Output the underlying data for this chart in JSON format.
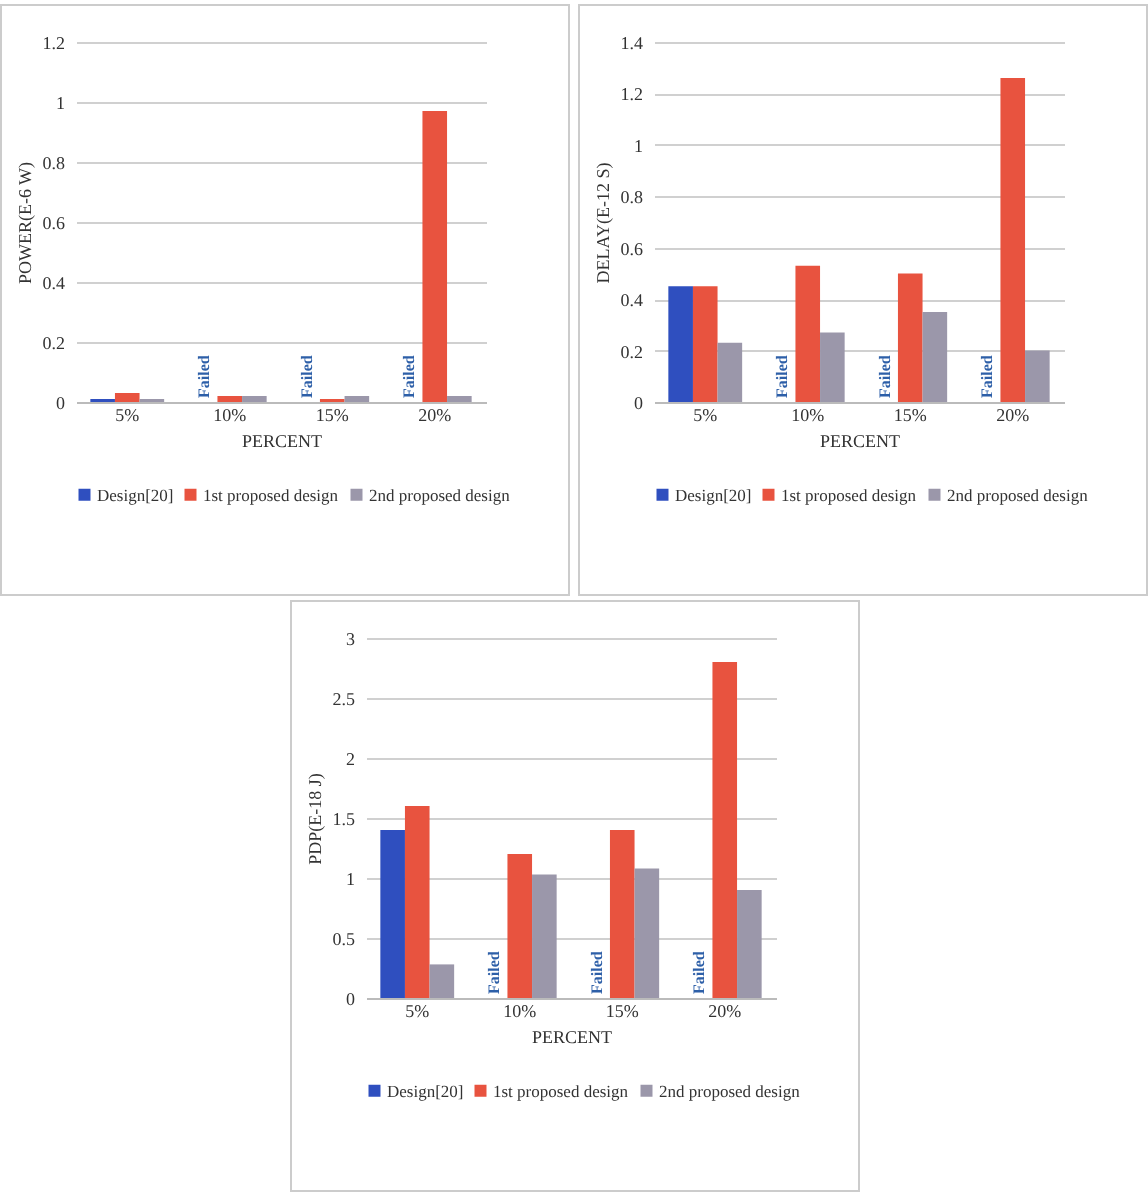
{
  "chart_data": [
    {
      "type": "bar",
      "xlabel": "PERCENT",
      "ylabel": "POWER(E-6 W)",
      "categories": [
        "5%",
        "10%",
        "15%",
        "20%"
      ],
      "series": [
        {
          "name": "Design[20]",
          "color": "#2f4fbf",
          "values": [
            0.01,
            null,
            null,
            null
          ],
          "value_labels": [
            null,
            "Failed",
            "Failed",
            "Failed"
          ]
        },
        {
          "name": "1st proposed design",
          "color": "#e8533f",
          "values": [
            0.03,
            0.02,
            0.01,
            0.97
          ]
        },
        {
          "name": "2nd proposed design",
          "color": "#9b97aa",
          "values": [
            0.01,
            0.02,
            0.02,
            0.02
          ]
        }
      ],
      "ylim": [
        0,
        1.2
      ],
      "yticks": [
        0,
        0.2,
        0.4,
        0.6,
        0.8,
        1,
        1.2
      ],
      "grid": "y",
      "legend": "bottom"
    },
    {
      "type": "bar",
      "xlabel": "PERCENT",
      "ylabel": "DELAY(E-12 S)",
      "categories": [
        "5%",
        "10%",
        "15%",
        "20%"
      ],
      "series": [
        {
          "name": "Design[20]",
          "color": "#2f4fbf",
          "values": [
            0.45,
            null,
            null,
            null
          ],
          "value_labels": [
            null,
            "Failed",
            "Failed",
            "Failed"
          ]
        },
        {
          "name": "1st proposed design",
          "color": "#e8533f",
          "values": [
            0.45,
            0.53,
            0.5,
            1.26
          ]
        },
        {
          "name": "2nd proposed design",
          "color": "#9b97aa",
          "values": [
            0.23,
            0.27,
            0.35,
            0.2
          ]
        }
      ],
      "ylim": [
        0,
        1.4
      ],
      "yticks": [
        0,
        0.2,
        0.4,
        0.6,
        0.8,
        1,
        1.2,
        1.4
      ],
      "grid": "y",
      "legend": "bottom"
    },
    {
      "type": "bar",
      "xlabel": "PERCENT",
      "ylabel": "PDP(E-18 J)",
      "categories": [
        "5%",
        "10%",
        "15%",
        "20%"
      ],
      "series": [
        {
          "name": "Design[20]",
          "color": "#2f4fbf",
          "values": [
            1.4,
            null,
            null,
            null
          ],
          "value_labels": [
            null,
            "Failed",
            "Failed",
            "Failed"
          ]
        },
        {
          "name": "1st proposed design",
          "color": "#e8533f",
          "values": [
            1.6,
            1.2,
            1.4,
            2.8
          ]
        },
        {
          "name": "2nd proposed design",
          "color": "#9b97aa",
          "values": [
            0.28,
            1.03,
            1.08,
            0.9
          ]
        }
      ],
      "ylim": [
        0,
        3
      ],
      "yticks": [
        0,
        0.5,
        1,
        1.5,
        2,
        2.5,
        3
      ],
      "grid": "y",
      "legend": "bottom"
    }
  ]
}
